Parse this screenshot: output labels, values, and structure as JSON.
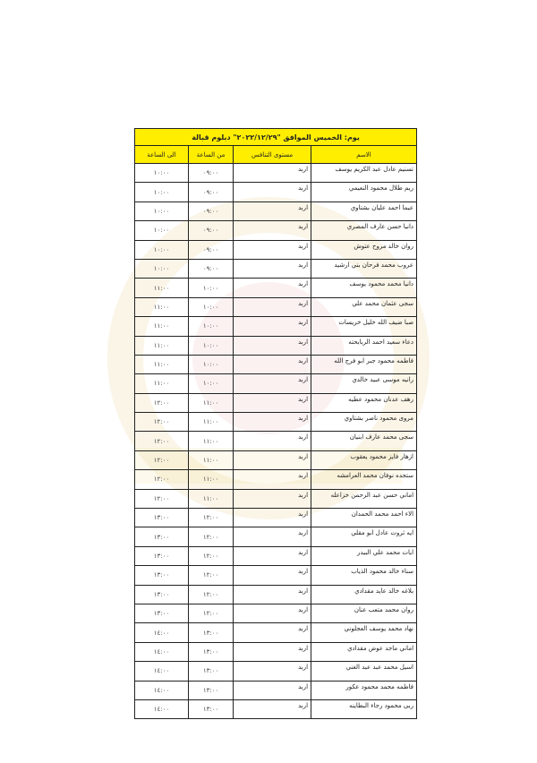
{
  "title": "يوم: الخميس  الموافق \"٢٠٢٢/١٢/٢٩\" دبلوم قبالة",
  "headers": {
    "name": "الاسم",
    "level": "مستوى التنافس",
    "from": "من الساعة",
    "to": "الى الساعة"
  },
  "rows": [
    {
      "name": "تسنيم عادل عبد الكريم يوسف",
      "level": "اربد",
      "from": "٠٩:٠٠",
      "to": "١٠:٠٠"
    },
    {
      "name": "ريم طلال محمود النعيمي",
      "level": "اربد",
      "from": "٠٩:٠٠",
      "to": "١٠:٠٠"
    },
    {
      "name": "عيما احمد عليان بشتاوي",
      "level": "اربد",
      "from": "٠٩:٠٠",
      "to": "١٠:٠٠"
    },
    {
      "name": "دانيا حسن عارف المصري",
      "level": "اربد",
      "from": "٠٩:٠٠",
      "to": "١٠:٠٠"
    },
    {
      "name": "روان خالد مروح عتوش",
      "level": "اربد",
      "from": "٠٩:٠٠",
      "to": "١٠:٠٠"
    },
    {
      "name": "عروب محمد فرحان بني ارشيد",
      "level": "اربد",
      "from": "٠٩:٠٠",
      "to": "١٠:٠٠"
    },
    {
      "name": "دانيا محمد محمود يوسف",
      "level": "اربد",
      "from": "١٠:٠٠",
      "to": "١١:٠٠"
    },
    {
      "name": "سجى عثمان محمد علي",
      "level": "اربد",
      "from": "١٠:٠٠",
      "to": "١١:٠٠"
    },
    {
      "name": "صبا ضيف الله خليل خريسات",
      "level": "اربد",
      "from": "١٠:٠٠",
      "to": "١١:٠٠"
    },
    {
      "name": "دعاء سعيد احمد الربابحته",
      "level": "اربد",
      "from": "١٠:٠٠",
      "to": "١١:٠٠"
    },
    {
      "name": "فاطمه محمود جبر ابو فرج الله",
      "level": "اربد",
      "from": "١٠:٠٠",
      "to": "١١:٠٠"
    },
    {
      "name": "رانيه موسى عبيد خالدي",
      "level": "اربد",
      "from": "١٠:٠٠",
      "to": "١١:٠٠"
    },
    {
      "name": "رهف عدنان محمود عطيه",
      "level": "اربد",
      "from": "١١:٠٠",
      "to": "١٢:٠٠"
    },
    {
      "name": "مروى محمود ناصر بشتاوي",
      "level": "اربد",
      "from": "١١:٠٠",
      "to": "١٢:٠٠"
    },
    {
      "name": "سجى محمد عارف ابنيان",
      "level": "اربد",
      "from": "١١:٠٠",
      "to": "١٢:٠٠"
    },
    {
      "name": "ازهار فايز محمود يعقوب",
      "level": "اربد",
      "from": "١١:٠٠",
      "to": "١٢:٠٠"
    },
    {
      "name": "ستجده نوفان محمد العرامشه",
      "level": "اربد",
      "from": "١١:٠٠",
      "to": "١٢:٠٠"
    },
    {
      "name": "اماني حسن عبد الرحمن خزاعله",
      "level": "اربد",
      "from": "١١:٠٠",
      "to": "١٢:٠٠"
    },
    {
      "name": "الاء احمد محمد الحمدان",
      "level": "اربد",
      "from": "١٢:٠٠",
      "to": "١٣:٠٠"
    },
    {
      "name": "ايه ثروت عادل ابو مقلي",
      "level": "اربد",
      "from": "١٢:٠٠",
      "to": "١٣:٠٠"
    },
    {
      "name": "ايات محمد علي البيدر",
      "level": "اربد",
      "from": "١٢:٠٠",
      "to": "١٣:٠٠"
    },
    {
      "name": "سناء خالد محمود الذياب",
      "level": "اربد",
      "from": "١٢:٠٠",
      "to": "١٣:٠٠"
    },
    {
      "name": "بلاغه خالد عايد مقدادي",
      "level": "اربد",
      "from": "١٢:٠٠",
      "to": "١٣:٠٠"
    },
    {
      "name": "روان محمد متعب عنان",
      "level": "اربد",
      "from": "١٢:٠٠",
      "to": "١٣:٠٠"
    },
    {
      "name": "نهاد محمد يوسف العجلوني",
      "level": "اربد",
      "from": "١٣:٠٠",
      "to": "١٤:٠٠"
    },
    {
      "name": "اماني ماجد عوض مقدادي",
      "level": "اربد",
      "from": "١٣:٠٠",
      "to": "١٤:٠٠"
    },
    {
      "name": "اسيل محمد عبد عبد الغني",
      "level": "اربد",
      "from": "١٣:٠٠",
      "to": "١٤:٠٠"
    },
    {
      "name": "فاطمه محمد محمود عكور",
      "level": "اربد",
      "from": "١٣:٠٠",
      "to": "١٤:٠٠"
    },
    {
      "name": "ربى محمود رجاء البطاينه",
      "level": "اربد",
      "from": "١٣:٠٠",
      "to": "١٤:٠٠"
    }
  ],
  "colors": {
    "header_bg": "#ffee00",
    "watermark": "#e6c878"
  }
}
